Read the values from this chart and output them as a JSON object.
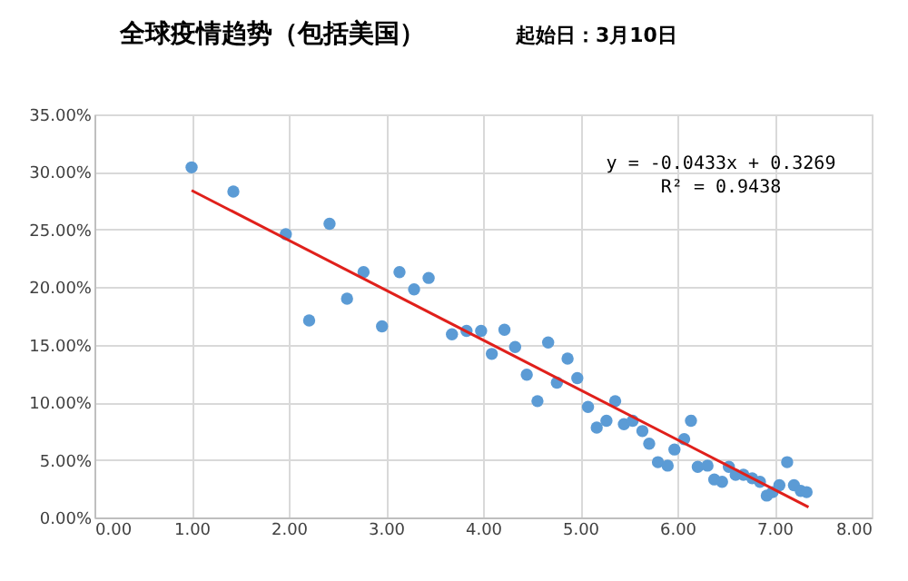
{
  "chart_data": {
    "type": "scatter",
    "title": "全球疫情趋势（包括美国）",
    "subtitle": "起始日：3月10日",
    "series": [
      {
        "color": "#5b9bd5",
        "marker": "circle",
        "x": [
          1.0,
          1.43,
          1.97,
          2.42,
          2.21,
          2.6,
          2.96,
          2.77,
          3.14,
          3.29,
          3.44,
          3.68,
          3.83,
          3.98,
          4.09,
          4.22,
          4.33,
          4.45,
          4.56,
          4.67,
          4.76,
          4.87,
          4.97,
          5.08,
          5.17,
          5.27,
          5.36,
          5.45,
          5.54,
          5.64,
          5.71,
          5.8,
          5.9,
          5.97,
          6.07,
          6.14,
          6.21,
          6.31,
          6.38,
          6.46,
          6.53,
          6.6,
          6.68,
          6.77,
          6.85,
          6.92,
          6.98,
          7.05,
          7.13,
          7.2,
          7.27,
          7.33
        ],
        "values": [
          0.304,
          0.283,
          0.246,
          0.255,
          0.171,
          0.19,
          0.166,
          0.213,
          0.213,
          0.198,
          0.208,
          0.159,
          0.162,
          0.162,
          0.142,
          0.163,
          0.148,
          0.124,
          0.101,
          0.152,
          0.117,
          0.138,
          0.121,
          0.096,
          0.078,
          0.084,
          0.101,
          0.081,
          0.084,
          0.075,
          0.064,
          0.048,
          0.045,
          0.059,
          0.068,
          0.084,
          0.044,
          0.045,
          0.033,
          0.031,
          0.044,
          0.037,
          0.037,
          0.034,
          0.031,
          0.019,
          0.022,
          0.028,
          0.048,
          0.028,
          0.023,
          0.022
        ]
      },
      {
        "type": "line",
        "color": "#e0201b",
        "marker": "none",
        "x": [
          1.0,
          7.35
        ],
        "values": [
          0.284,
          0.009
        ]
      }
    ],
    "annotations": [
      "y = -0.0433x + 0.3269",
      "R² = 0.9438"
    ],
    "xlim": [
      0,
      8
    ],
    "ylim": [
      0,
      0.35
    ],
    "xticks": [
      {
        "value": 0,
        "label": "0.00"
      },
      {
        "value": 1,
        "label": "1.00"
      },
      {
        "value": 2,
        "label": "2.00"
      },
      {
        "value": 3,
        "label": "3.00"
      },
      {
        "value": 4,
        "label": "4.00"
      },
      {
        "value": 5,
        "label": "5.00"
      },
      {
        "value": 6,
        "label": "6.00"
      },
      {
        "value": 7,
        "label": "7.00"
      },
      {
        "value": 8,
        "label": "8.00"
      }
    ],
    "yticks": [
      {
        "value": 0,
        "label": "0.00%"
      },
      {
        "value": 0.05,
        "label": "5.00%"
      },
      {
        "value": 0.1,
        "label": "10.00%"
      },
      {
        "value": 0.15,
        "label": "15.00%"
      },
      {
        "value": 0.2,
        "label": "20.00%"
      },
      {
        "value": 0.25,
        "label": "25.00%"
      },
      {
        "value": 0.3,
        "label": "30.00%"
      },
      {
        "value": 0.35,
        "label": "35.00%"
      }
    ],
    "grid": true
  }
}
